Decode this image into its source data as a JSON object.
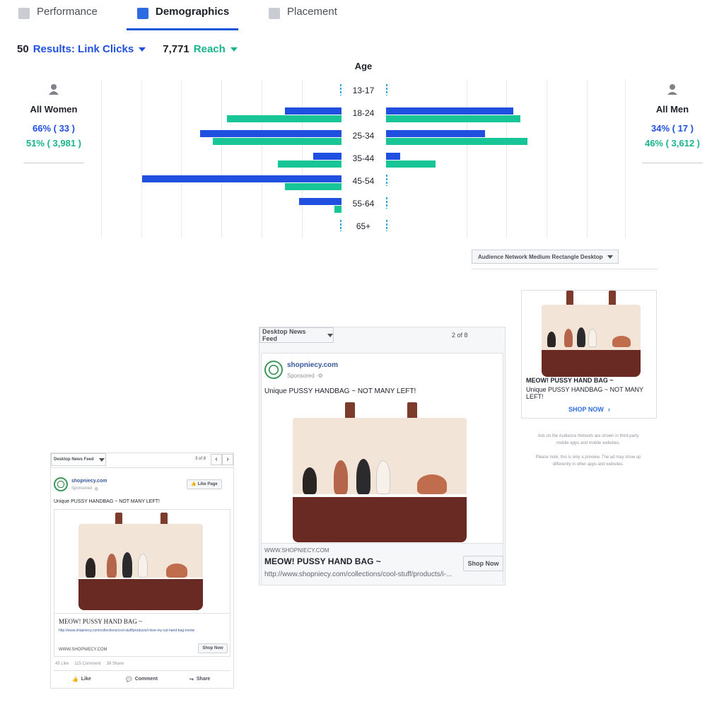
{
  "tabs": {
    "performance": "Performance",
    "demographics": "Demographics",
    "placement": "Placement"
  },
  "metrics": {
    "results_count": "50",
    "results_label": "Results: Link Clicks",
    "reach_count": "7,771",
    "reach_label": "Reach"
  },
  "chart_data": {
    "type": "bar",
    "title": "Age",
    "categories": [
      "13-17",
      "18-24",
      "25-34",
      "35-44",
      "45-54",
      "55-64",
      "65+"
    ],
    "series": [
      {
        "name": "Women Results",
        "side": "left",
        "color": "#2050e0",
        "values": [
          0,
          80,
          200,
          40,
          282,
          60,
          0
        ]
      },
      {
        "name": "Women Reach",
        "side": "left",
        "color": "#18c597",
        "values": [
          0,
          162,
          182,
          90,
          80,
          10,
          0
        ]
      },
      {
        "name": "Men Results",
        "side": "right",
        "color": "#2050e0",
        "values": [
          0,
          180,
          140,
          20,
          0,
          0,
          0
        ]
      },
      {
        "name": "Men Reach",
        "side": "right",
        "color": "#18c597",
        "values": [
          0,
          190,
          200,
          70,
          0,
          0,
          0
        ]
      }
    ],
    "grid": true
  },
  "women": {
    "label": "All Women",
    "results_pct": "66% ( 33 )",
    "reach_pct": "51% ( 3,981 )"
  },
  "men": {
    "label": "All Men",
    "results_pct": "34% ( 17 )",
    "reach_pct": "46% ( 3,612 )"
  },
  "audience_network": {
    "dropdown": "Audience Network Medium Rectangle Desktop",
    "headline": "MEOW! PUSSY HAND BAG ~",
    "text": "Unique PUSSY HANDBAG ~ NOT MANY LEFT!",
    "cta": "SHOP NOW",
    "note1": "Ads on the Audience Network are shown in third-party mobile apps and mobile websites.",
    "note2": "Please note, this is only a preview. The ad may show up differently in other apps and websites."
  },
  "desktop_feed": {
    "dropdown": "Desktop News Feed",
    "pager": "2 of 8",
    "page_name": "shopniecy.com",
    "sponsored": "Sponsored · ",
    "text": "Unique PUSSY HANDBAG ~ NOT MANY LEFT!",
    "domain": "WWW.SHOPNIECY.COM",
    "headline": "MEOW! PUSSY HAND BAG ~",
    "url": "http://www.shopniecy.com/collections/cool-stuff/products/i-...",
    "cta": "Shop Now"
  },
  "small_feed": {
    "dropdown": "Desktop News Feed",
    "pager": "3 of 8",
    "page_name": "shopniecy.com",
    "sponsored": "Sponsored · ",
    "like_page": "Like Page",
    "text": "Unique PUSSY HANDBAG ~ NOT MANY LEFT!",
    "headline": "MEOW! PUSSY HAND BAG ~",
    "url": "http://www.shopniecy.com/collections/cool-stuff/products/i-love-my-cat-hand-bag-meow",
    "domain": "WWW.SHOPNIECY.COM",
    "cta": "Shop Now",
    "likes": "45 Like",
    "comments": "115 Comment",
    "shares": "38 Share",
    "action_like": "Like",
    "action_comment": "Comment",
    "action_share": "Share"
  }
}
